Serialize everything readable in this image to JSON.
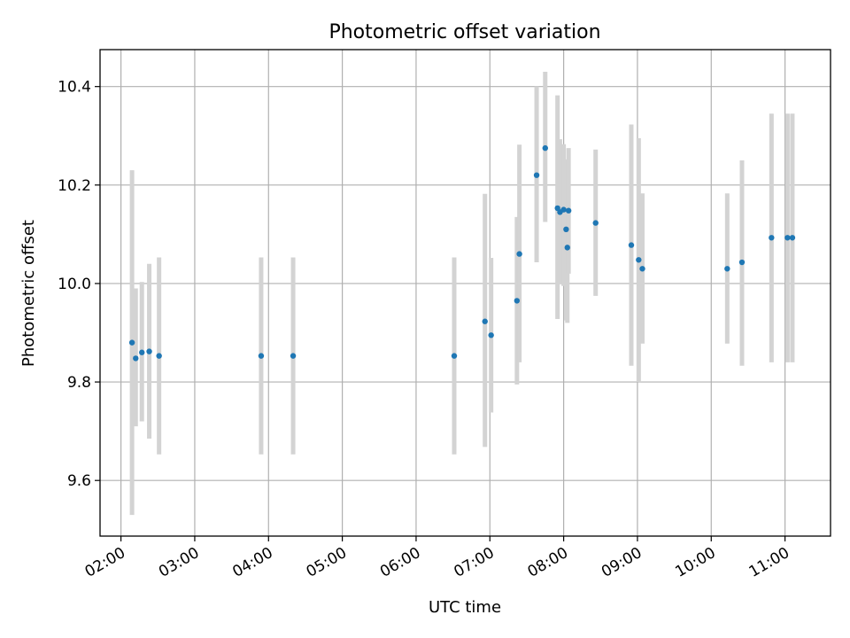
{
  "chart_data": {
    "type": "scatter",
    "title": "Photometric offset variation",
    "xlabel": "UTC time",
    "ylabel": "Photometric offset",
    "x_ticks": [
      "02:00",
      "03:00",
      "04:00",
      "05:00",
      "06:00",
      "07:00",
      "08:00",
      "09:00",
      "10:00",
      "11:00"
    ],
    "y_ticks": [
      9.6,
      9.8,
      10.0,
      10.2,
      10.4
    ],
    "xlim": [
      "01:43",
      "11:37"
    ],
    "ylim": [
      9.487,
      10.475
    ],
    "grid": true,
    "colors": {
      "points": "#1f77b4",
      "error_bars": "#d3d3d3",
      "grid": "#b0b0b0"
    },
    "series": [
      {
        "x": [
          "02:09",
          "02:12",
          "02:17",
          "02:23",
          "02:31",
          "03:54",
          "04:20",
          "06:31",
          "06:56",
          "07:01",
          "07:22",
          "07:24",
          "07:38",
          "07:45",
          "07:55",
          "07:57",
          "08:00",
          "08:02",
          "08:03",
          "08:04",
          "08:26",
          "08:55",
          "09:01",
          "09:04",
          "10:13",
          "10:25",
          "10:49",
          "11:02",
          "11:06"
        ],
        "y": [
          9.88,
          9.848,
          9.86,
          9.862,
          9.853,
          9.853,
          9.853,
          9.853,
          9.923,
          9.895,
          9.965,
          10.06,
          10.22,
          10.275,
          10.153,
          10.145,
          10.15,
          10.11,
          10.073,
          10.148,
          10.123,
          10.078,
          10.048,
          10.03,
          10.03,
          10.043,
          10.093,
          10.093,
          10.093
        ],
        "err_low": [
          9.53,
          9.71,
          9.72,
          9.685,
          9.653,
          9.653,
          9.653,
          9.653,
          9.668,
          9.738,
          9.795,
          9.84,
          10.043,
          10.125,
          9.928,
          10.0,
          9.995,
          9.925,
          9.92,
          10.02,
          9.975,
          9.833,
          9.8,
          9.878,
          9.878,
          9.833,
          9.84,
          9.84,
          9.84
        ],
        "err_high": [
          10.23,
          9.99,
          10.003,
          10.04,
          10.053,
          10.053,
          10.053,
          10.053,
          10.182,
          10.052,
          10.135,
          10.282,
          10.4,
          10.43,
          10.382,
          10.293,
          10.283,
          10.252,
          10.228,
          10.275,
          10.272,
          10.323,
          10.295,
          10.183,
          10.183,
          10.25,
          10.345,
          10.345,
          10.345
        ]
      }
    ]
  }
}
